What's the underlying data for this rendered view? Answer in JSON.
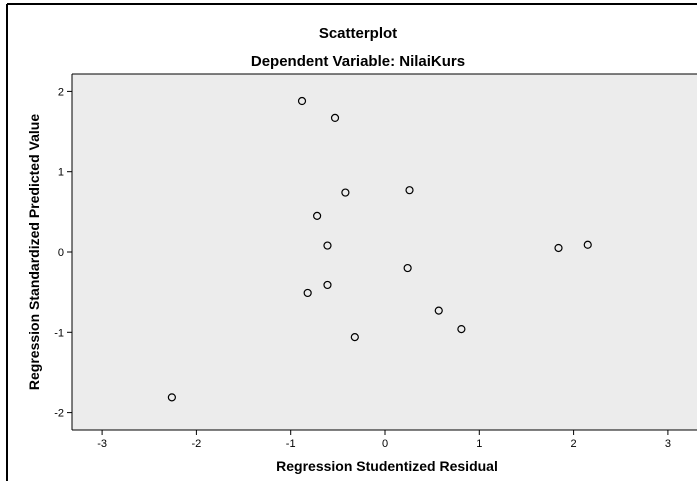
{
  "chart_data": {
    "type": "scatter",
    "title": "Scatterplot",
    "subtitle": "Dependent Variable: NilaiKurs",
    "xlabel": "Regression Studentized Residual",
    "ylabel": "Regression Standardized Predicted Value",
    "xlim": [
      -3.3,
      3.3
    ],
    "ylim": [
      -2.22,
      2.22
    ],
    "xticks": [
      -3,
      -2,
      -1,
      0,
      1,
      2,
      3
    ],
    "yticks": [
      -2,
      -1,
      0,
      1,
      2
    ],
    "grid": false,
    "colors": {
      "plot_background": "#ececec",
      "marker_stroke": "#000000"
    },
    "points": [
      {
        "x": -0.88,
        "y": 1.88
      },
      {
        "x": -0.53,
        "y": 1.67
      },
      {
        "x": 0.26,
        "y": 0.77
      },
      {
        "x": -0.42,
        "y": 0.74
      },
      {
        "x": -0.72,
        "y": 0.45
      },
      {
        "x": -0.61,
        "y": 0.08
      },
      {
        "x": 1.84,
        "y": 0.05
      },
      {
        "x": 2.15,
        "y": 0.09
      },
      {
        "x": 0.24,
        "y": -0.2
      },
      {
        "x": -0.61,
        "y": -0.41
      },
      {
        "x": -0.82,
        "y": -0.51
      },
      {
        "x": 0.57,
        "y": -0.73
      },
      {
        "x": 0.81,
        "y": -0.96
      },
      {
        "x": -0.32,
        "y": -1.06
      },
      {
        "x": -2.26,
        "y": -1.81
      }
    ]
  }
}
